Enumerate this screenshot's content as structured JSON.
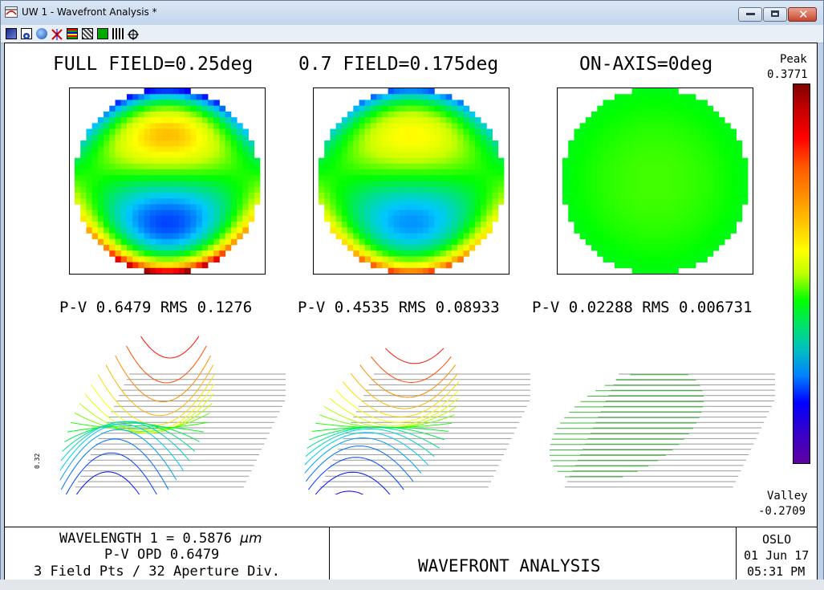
{
  "window": {
    "title": "UW 1 - Wavefront Analysis *"
  },
  "toolbar": {
    "icons": [
      "surface-map-icon",
      "spot-icon",
      "globe-icon",
      "cross-icon",
      "stripes-icon",
      "mesh-icon",
      "fill-icon",
      "bars-icon",
      "zoom-icon"
    ]
  },
  "plots": [
    {
      "title": "FULL FIELD=0.25deg",
      "stats": "P-V 0.6479 RMS 0.1276"
    },
    {
      "title": "0.7 FIELD=0.175deg",
      "stats": "P-V 0.4535 RMS 0.08933"
    },
    {
      "title": "ON-AXIS=0deg",
      "stats": "P-V 0.02288 RMS 0.006731"
    }
  ],
  "colorbar": {
    "peak_label": "Peak",
    "peak_value": "0.3771",
    "valley_label": "Valley",
    "valley_value": "-0.2709"
  },
  "scale_label": "0.32",
  "footer": {
    "wavelength_prefix": "WAVELENGTH 1 = 0.5876 ",
    "wavelength_unit": "μm",
    "pv_opd": "P-V OPD 0.6479",
    "fields": "3 Field Pts / 32 Aperture Div.",
    "title": "WAVEFRONT ANALYSIS",
    "program": "OSLO",
    "date": "01 Jun 17",
    "time": "05:31 PM"
  },
  "colors": {
    "title_bar": "#c2d5ec",
    "close_button": "#c8452c",
    "map_on_axis": "#22ee22"
  }
}
